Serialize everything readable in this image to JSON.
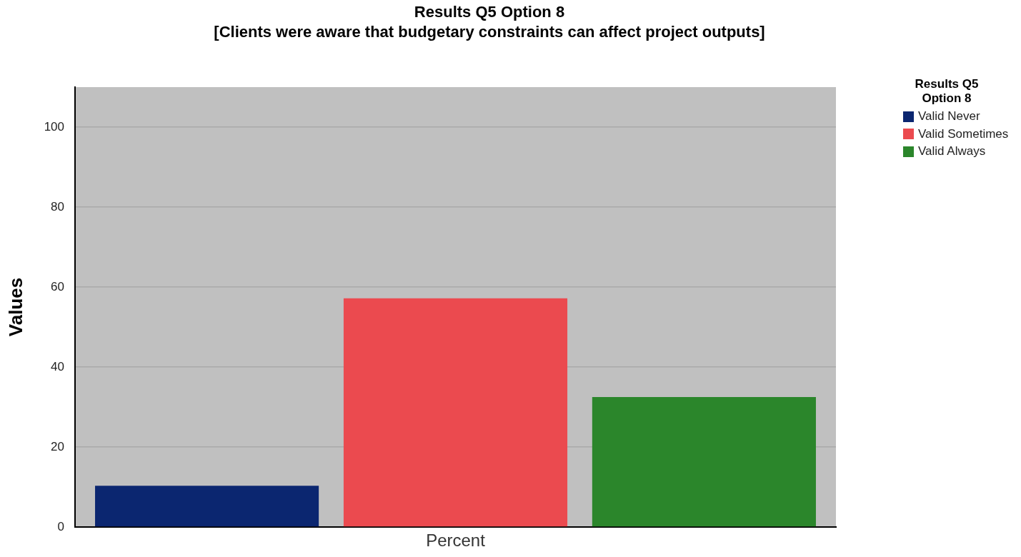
{
  "chart_data": {
    "type": "bar",
    "title": "Results Q5 Option 8",
    "subtitle": "[Clients were aware that budgetary constraints can affect project outputs]",
    "ylabel": "Values",
    "legend_title": "Results Q5 Option 8",
    "categories": [
      "Percent"
    ],
    "series": [
      {
        "name": "Valid Never",
        "color": "#0b2670",
        "values": [
          10.3
        ]
      },
      {
        "name": "Valid Sometimes",
        "color": "#eb4a4f",
        "values": [
          57.2
        ]
      },
      {
        "name": "Valid Always",
        "color": "#2b862b",
        "values": [
          32.5
        ]
      }
    ],
    "ylim": [
      0,
      110
    ],
    "yticks": [
      0,
      20,
      40,
      60,
      80,
      100
    ],
    "grid": "y",
    "legend": "top right"
  }
}
